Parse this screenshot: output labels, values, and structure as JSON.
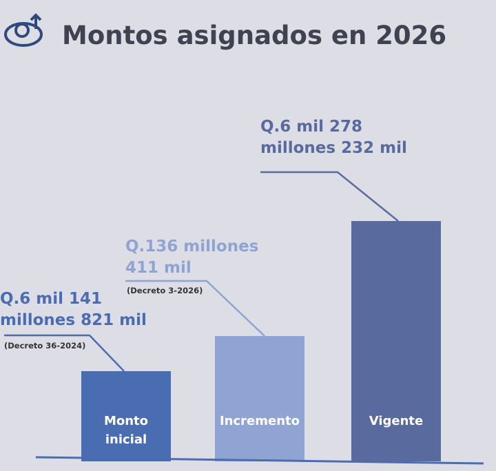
{
  "header": {
    "title": "Montos asignados en 2026"
  },
  "bars": [
    {
      "label": "Monto inicial",
      "amount_lines": [
        "Q.6 mil 141",
        "millones 821 mil"
      ],
      "note": "(Decreto 36-2024)"
    },
    {
      "label": "Incremento",
      "amount_lines": [
        "Q.136 millones",
        "411 mil"
      ],
      "note": "(Decreto 3-2026)"
    },
    {
      "label": "Vigente",
      "amount_lines": [
        "Q.6 mil 278",
        "millones 232 mil"
      ]
    }
  ]
}
